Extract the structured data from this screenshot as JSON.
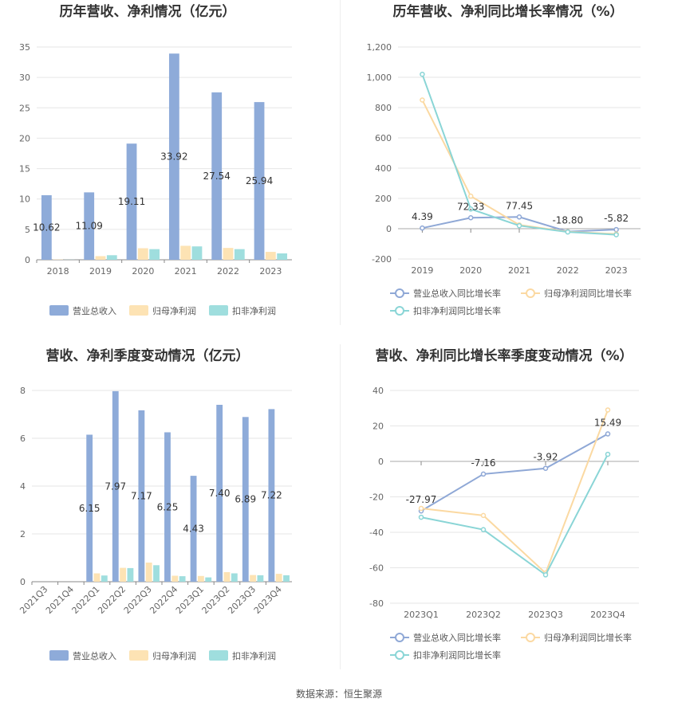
{
  "colors": {
    "revenue": "#8eabd9",
    "net_profit": "#fde3b4",
    "deducted_profit": "#9fdede",
    "revenue_line": "#8fa8d6",
    "net_line": "#fbd9a2",
    "deducted_line": "#8ad5d6",
    "grid": "#e6e6e6",
    "axis": "#999999"
  },
  "source": "数据来源：恒生聚源",
  "chart_data": [
    {
      "id": "annual_amount",
      "type": "bar",
      "title": "历年营收、净利情况（亿元）",
      "categories": [
        "2018",
        "2019",
        "2020",
        "2021",
        "2022",
        "2023"
      ],
      "ylim": [
        0,
        35
      ],
      "yticks": [
        0,
        5,
        10,
        15,
        20,
        25,
        30,
        35
      ],
      "ytick_labels": [
        "0",
        "5",
        "10",
        "15",
        "20",
        "25",
        "30",
        "35"
      ],
      "grid": true,
      "legend_position": "bottom",
      "series": [
        {
          "name": "营业总收入",
          "color": "#8eabd9",
          "values": [
            10.62,
            11.09,
            19.11,
            33.92,
            27.54,
            25.94
          ],
          "labels": [
            "10.62",
            "11.09",
            "19.11",
            "33.92",
            "27.54",
            "25.94"
          ]
        },
        {
          "name": "归母净利润",
          "color": "#fde3b4",
          "values": [
            0.05,
            0.6,
            1.9,
            2.3,
            1.95,
            1.3
          ]
        },
        {
          "name": "扣非净利润",
          "color": "#9fdede",
          "values": [
            0.02,
            0.75,
            1.75,
            2.2,
            1.75,
            1.05
          ]
        }
      ]
    },
    {
      "id": "annual_growth",
      "type": "line",
      "title": "历年营收、净利同比增长率情况（%）",
      "categories": [
        "2019",
        "2020",
        "2021",
        "2022",
        "2023"
      ],
      "ylim": [
        -200,
        1200
      ],
      "yticks": [
        -200,
        0,
        200,
        400,
        600,
        800,
        1000,
        1200
      ],
      "ytick_labels": [
        "-200",
        "0",
        "200",
        "400",
        "600",
        "800",
        "1,000",
        "1,200"
      ],
      "grid": true,
      "legend_position": "bottom",
      "series": [
        {
          "name": "营业总收入同比增长率",
          "color": "#8fa8d6",
          "values": [
            4.39,
            72.33,
            77.45,
            -18.8,
            -5.82
          ],
          "labels": [
            "4.39",
            "72.33",
            "77.45",
            "-18.80",
            "-5.82"
          ]
        },
        {
          "name": "归母净利润同比增长率",
          "color": "#fbd9a2",
          "values": [
            850,
            215,
            25,
            -20,
            -35
          ]
        },
        {
          "name": "扣非净利润同比增长率",
          "color": "#8ad5d6",
          "values": [
            1020,
            130,
            20,
            -22,
            -40
          ]
        }
      ]
    },
    {
      "id": "quarterly_amount",
      "type": "bar",
      "title": "营收、净利季度变动情况（亿元）",
      "categories": [
        "2021Q3",
        "2021Q4",
        "2022Q1",
        "2022Q2",
        "2022Q3",
        "2022Q4",
        "2023Q1",
        "2023Q2",
        "2023Q3",
        "2023Q4"
      ],
      "ylim": [
        0,
        8
      ],
      "yticks": [
        0,
        2,
        4,
        6,
        8
      ],
      "ytick_labels": [
        "0",
        "2",
        "4",
        "6",
        "8"
      ],
      "grid": true,
      "legend_position": "bottom",
      "series": [
        {
          "name": "营业总收入",
          "color": "#8eabd9",
          "values": [
            null,
            null,
            6.15,
            7.97,
            7.17,
            6.25,
            4.43,
            7.4,
            6.89,
            7.22
          ],
          "labels": [
            "",
            "",
            "6.15",
            "7.97",
            "7.17",
            "6.25",
            "4.43",
            "7.40",
            "6.89",
            "7.22"
          ]
        },
        {
          "name": "归母净利润",
          "color": "#fde3b4",
          "values": [
            null,
            null,
            0.35,
            0.58,
            0.8,
            0.25,
            0.24,
            0.4,
            0.28,
            0.33
          ]
        },
        {
          "name": "扣非净利润",
          "color": "#9fdede",
          "values": [
            null,
            null,
            0.26,
            0.57,
            0.69,
            0.23,
            0.18,
            0.35,
            0.27,
            0.27
          ]
        }
      ]
    },
    {
      "id": "quarterly_growth",
      "type": "line",
      "title": "营收、净利同比增长率季度变动情况（%）",
      "categories": [
        "2023Q1",
        "2023Q2",
        "2023Q3",
        "2023Q4"
      ],
      "ylim": [
        -80,
        40
      ],
      "yticks": [
        -80,
        -60,
        -40,
        -20,
        0,
        20,
        40
      ],
      "ytick_labels": [
        "-80",
        "-60",
        "-40",
        "-20",
        "0",
        "20",
        "40"
      ],
      "grid": true,
      "legend_position": "bottom",
      "series": [
        {
          "name": "营业总收入同比增长率",
          "color": "#8fa8d6",
          "values": [
            -27.97,
            -7.16,
            -3.92,
            15.49
          ],
          "labels": [
            "-27.97",
            "-7.16",
            "-3.92",
            "15.49"
          ]
        },
        {
          "name": "归母净利润同比增长率",
          "color": "#fbd9a2",
          "values": [
            -26.5,
            -30.5,
            -63,
            29
          ]
        },
        {
          "name": "扣非净利润同比增长率",
          "color": "#8ad5d6",
          "values": [
            -31.5,
            -38.5,
            -64,
            4
          ]
        }
      ]
    }
  ]
}
